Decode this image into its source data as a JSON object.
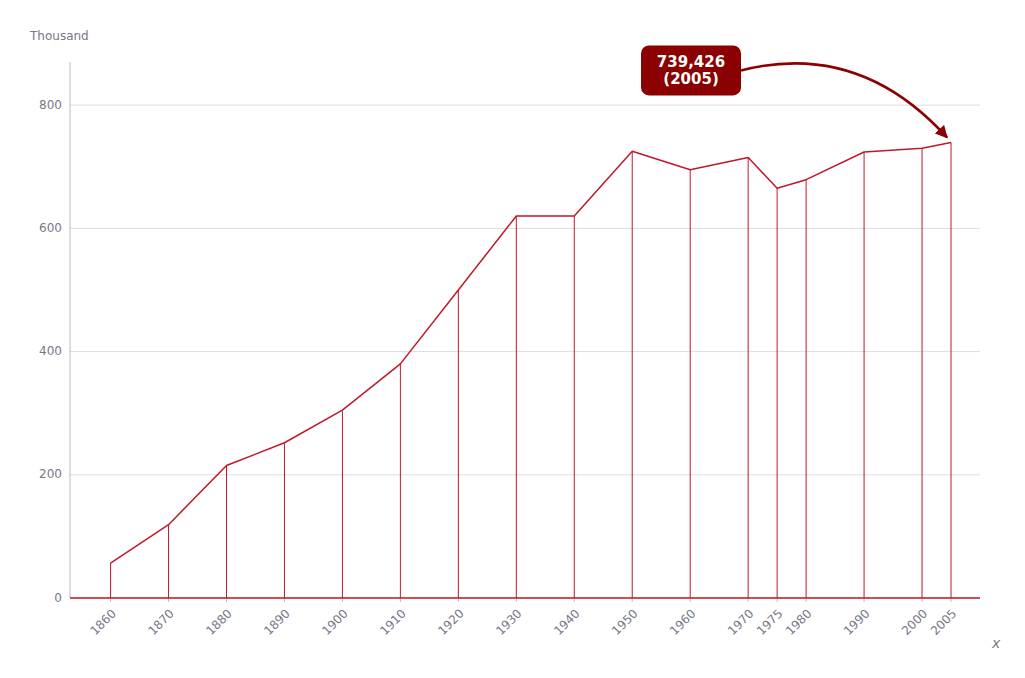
{
  "chart_data": {
    "type": "line",
    "x": [
      1860,
      1870,
      1880,
      1890,
      1900,
      1910,
      1920,
      1930,
      1940,
      1950,
      1960,
      1970,
      1975,
      1980,
      1990,
      2000,
      2005
    ],
    "values": [
      56.8,
      119.0,
      215.0,
      252.0,
      305.0,
      380.0,
      500.0,
      620.0,
      620.0,
      725.0,
      695.0,
      715.0,
      665.0,
      679.0,
      724.0,
      730.0,
      739.4
    ],
    "color": "#c0182a",
    "x_label": "x",
    "y_label": "Thousand",
    "xlim": [
      1853,
      2010
    ],
    "xticks": [
      1860,
      1870,
      1880,
      1890,
      1900,
      1910,
      1920,
      1930,
      1940,
      1950,
      1960,
      1970,
      1975,
      1980,
      1990,
      2000,
      2005
    ],
    "ylim": [
      0,
      870
    ],
    "yticks": [
      0,
      200,
      400,
      600,
      800
    ],
    "grid": "y",
    "annotations": [
      {
        "text": "739,426\n(2005)",
        "x": 2005,
        "y": 739.4,
        "color": "#8b0000"
      }
    ]
  }
}
